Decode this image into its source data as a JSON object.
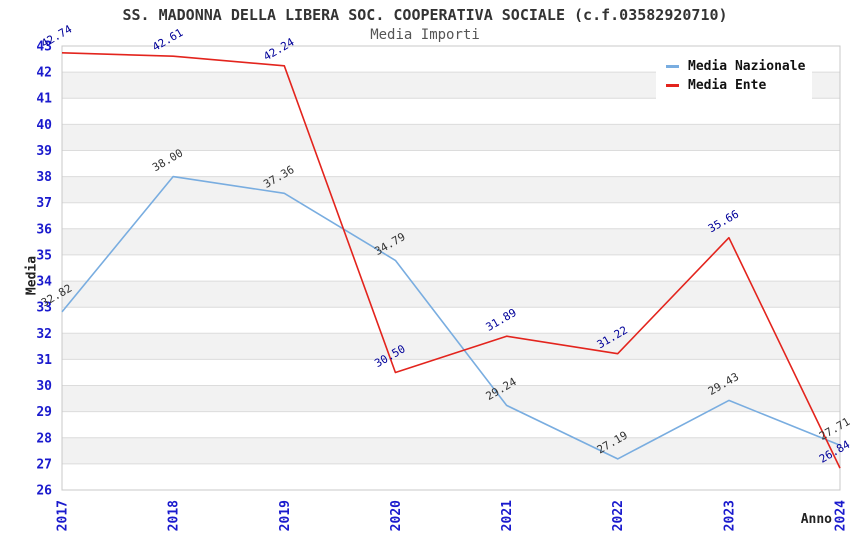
{
  "title": "SS. MADONNA DELLA LIBERA SOC. COOPERATIVA SOCIALE (c.f.03582920710)",
  "subtitle": "Media Importi",
  "chart_data": {
    "type": "line",
    "x": [
      "2017",
      "2018",
      "2019",
      "2020",
      "2021",
      "2022",
      "2023",
      "2024"
    ],
    "xlabel": "Anno",
    "ylabel": "Media",
    "ylim": [
      26,
      43
    ],
    "ytick_interval": 1,
    "grid": "horizontal",
    "alternating_bands": true,
    "legend_position": "top-right",
    "series": [
      {
        "name": "Media Nazionale",
        "color": "#79ade0",
        "label_color": "#333333",
        "values": [
          32.82,
          38.0,
          37.36,
          34.79,
          29.24,
          27.19,
          29.43,
          27.71
        ]
      },
      {
        "name": "Media Ente",
        "color": "#e3241d",
        "label_color": "#000099",
        "values": [
          42.74,
          42.61,
          42.24,
          30.5,
          31.89,
          31.22,
          35.66,
          26.84
        ]
      }
    ],
    "colors": {
      "tick_label": "#1a1acd",
      "band": "#f2f2f2",
      "grid_line": "#dcdcdc",
      "plot_border": "#c8c8c8"
    }
  }
}
